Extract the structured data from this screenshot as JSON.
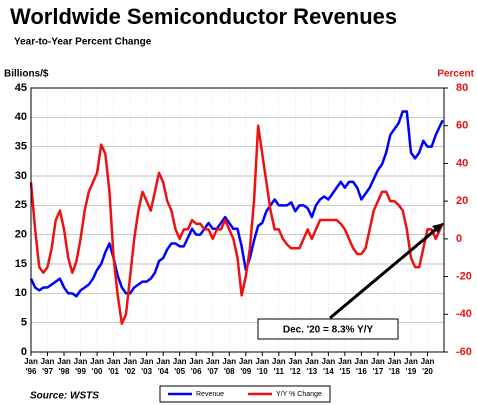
{
  "chart_data": {
    "type": "line",
    "title": "Worldwide Semiconductor Revenues",
    "subtitle": "Year-to-Year Percent Change",
    "y_label": "Billions/$",
    "y2_label": "Percent",
    "source": "Source: WSTS",
    "annotation": "Dec. '20 = 8.3% Y/Y",
    "xlim": [
      1996,
      2021
    ],
    "xtick_month": "Jan",
    "xticks": [
      {
        "value": 1996,
        "label": "'96"
      },
      {
        "value": 1997,
        "label": "'97"
      },
      {
        "value": 1998,
        "label": "'98"
      },
      {
        "value": 1999,
        "label": "'99"
      },
      {
        "value": 2000,
        "label": "'00"
      },
      {
        "value": 2001,
        "label": "'01"
      },
      {
        "value": 2002,
        "label": "'02"
      },
      {
        "value": 2003,
        "label": "'03"
      },
      {
        "value": 2004,
        "label": "'04"
      },
      {
        "value": 2005,
        "label": "'05"
      },
      {
        "value": 2006,
        "label": "'06"
      },
      {
        "value": 2007,
        "label": "'07"
      },
      {
        "value": 2008,
        "label": "'08"
      },
      {
        "value": 2009,
        "label": "'09"
      },
      {
        "value": 2010,
        "label": "'10"
      },
      {
        "value": 2011,
        "label": "'11"
      },
      {
        "value": 2012,
        "label": "'12"
      },
      {
        "value": 2013,
        "label": "'13"
      },
      {
        "value": 2014,
        "label": "'14"
      },
      {
        "value": 2015,
        "label": "'15"
      },
      {
        "value": 2016,
        "label": "'16"
      },
      {
        "value": 2017,
        "label": "'17"
      },
      {
        "value": 2018,
        "label": "'18"
      },
      {
        "value": 2019,
        "label": "'19"
      },
      {
        "value": 2020,
        "label": "'20"
      }
    ],
    "ylim": [
      0,
      45
    ],
    "yticks": [
      0,
      5,
      10,
      15,
      20,
      25,
      30,
      35,
      40,
      45
    ],
    "y2lim": [
      -60,
      80
    ],
    "y2ticks": [
      -60,
      -40,
      -20,
      0,
      20,
      40,
      60,
      80
    ],
    "grid": true,
    "x": [
      1996,
      1996.25,
      1996.5,
      1996.75,
      1997,
      1997.25,
      1997.5,
      1997.75,
      1998,
      1998.25,
      1998.5,
      1998.75,
      1999,
      1999.25,
      1999.5,
      1999.75,
      2000,
      2000.25,
      2000.5,
      2000.75,
      2001,
      2001.25,
      2001.5,
      2001.75,
      2002,
      2002.25,
      2002.5,
      2002.75,
      2003,
      2003.25,
      2003.5,
      2003.75,
      2004,
      2004.25,
      2004.5,
      2004.75,
      2005,
      2005.25,
      2005.5,
      2005.75,
      2006,
      2006.25,
      2006.5,
      2006.75,
      2007,
      2007.25,
      2007.5,
      2007.75,
      2008,
      2008.25,
      2008.5,
      2008.75,
      2009,
      2009.25,
      2009.5,
      2009.75,
      2010,
      2010.25,
      2010.5,
      2010.75,
      2011,
      2011.25,
      2011.5,
      2011.75,
      2012,
      2012.25,
      2012.5,
      2012.75,
      2013,
      2013.25,
      2013.5,
      2013.75,
      2014,
      2014.25,
      2014.5,
      2014.75,
      2015,
      2015.25,
      2015.5,
      2015.75,
      2016,
      2016.25,
      2016.5,
      2016.75,
      2017,
      2017.25,
      2017.5,
      2017.75,
      2018,
      2018.25,
      2018.5,
      2018.75,
      2019,
      2019.25,
      2019.5,
      2019.75,
      2020,
      2020.25,
      2020.5,
      2020.92
    ],
    "series": [
      {
        "name": "Revenue",
        "color": "#0000ff",
        "values": [
          12.5,
          11,
          10.5,
          11,
          11,
          11.5,
          12,
          12.5,
          11,
          10,
          10,
          9.5,
          10.5,
          11,
          11.5,
          12.5,
          14,
          15,
          17,
          18.5,
          16,
          13,
          11,
          10,
          10,
          11,
          11.5,
          12,
          12,
          12.5,
          13.5,
          15.5,
          16,
          17.5,
          18.5,
          18.5,
          18,
          18,
          19.5,
          21,
          20,
          20,
          21,
          22,
          21,
          21,
          22,
          23,
          22,
          21,
          21,
          18,
          14,
          16,
          19,
          21.5,
          22,
          24,
          25,
          26,
          25,
          25,
          25,
          25.5,
          24,
          25,
          25,
          24.5,
          23,
          25,
          26,
          26.5,
          26,
          27,
          28,
          29,
          28,
          29,
          29,
          28,
          26,
          27,
          28,
          29.5,
          31,
          32,
          34,
          37,
          38,
          39,
          41,
          41,
          34,
          33,
          34,
          36,
          35,
          35,
          37,
          39.5
        ]
      },
      {
        "name": "Y/Y % Change",
        "color": "#ee1111",
        "axis": "y2",
        "values": [
          30,
          5,
          -15,
          -18,
          -15,
          -5,
          10,
          15,
          5,
          -10,
          -18,
          -12,
          0,
          15,
          25,
          30,
          35,
          50,
          45,
          25,
          -10,
          -30,
          -45,
          -40,
          -20,
          0,
          15,
          25,
          20,
          15,
          25,
          35,
          30,
          20,
          15,
          5,
          0,
          5,
          5,
          10,
          8,
          8,
          5,
          5,
          0,
          5,
          5,
          10,
          5,
          0,
          -10,
          -30,
          -20,
          -5,
          20,
          60,
          45,
          30,
          15,
          5,
          5,
          0,
          -3,
          -5,
          -5,
          -5,
          0,
          5,
          0,
          5,
          10,
          10,
          10,
          10,
          10,
          8,
          5,
          0,
          -5,
          -8,
          -8,
          -5,
          5,
          15,
          20,
          25,
          25,
          20,
          20,
          18,
          15,
          5,
          -10,
          -15,
          -15,
          -5,
          5,
          5,
          0,
          8.3
        ]
      }
    ]
  }
}
